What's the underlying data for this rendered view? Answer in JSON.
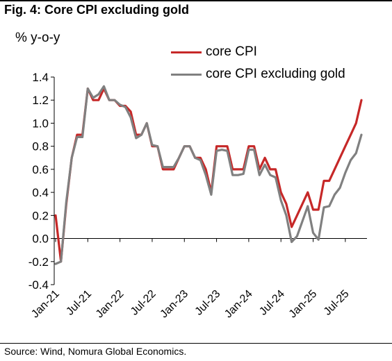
{
  "header": {
    "title": "Fig. 4: Core CPI excluding gold"
  },
  "footer": {
    "source": "Source: Wind, Nomura Global Economics."
  },
  "colors": {
    "core_cpi": "#c62828",
    "core_cpi_ex_gold": "#808080",
    "axis": "#000000"
  },
  "chart_data": {
    "type": "line",
    "title": "Fig. 4: Core CPI excluding gold",
    "ylabel": "% y-o-y",
    "xlabel": "",
    "ylim": [
      -0.4,
      1.4
    ],
    "yticks": [
      -0.4,
      -0.2,
      0.0,
      0.2,
      0.4,
      0.6,
      0.8,
      1.0,
      1.2,
      1.4
    ],
    "ytick_labels": [
      "-0.4",
      "-0.2",
      "0.0",
      "0.2",
      "0.4",
      "0.6",
      "0.8",
      "1.0",
      "1.2",
      "1.4"
    ],
    "x_start": "2021-01",
    "xtick_labels": [
      "Jan-21",
      "Jul-21",
      "Jan-22",
      "Jul-22",
      "Jan-23",
      "Jul-23",
      "Jan-24",
      "Jul-24",
      "Jan-25",
      "Jul-25"
    ],
    "xtick_positions": [
      "2021-01",
      "2021-07",
      "2022-01",
      "2022-07",
      "2023-01",
      "2023-07",
      "2024-01",
      "2024-07",
      "2025-01",
      "2025-07"
    ],
    "x": [
      "2021-01",
      "2021-02",
      "2021-03",
      "2021-04",
      "2021-05",
      "2021-06",
      "2021-07",
      "2021-08",
      "2021-09",
      "2021-10",
      "2021-11",
      "2021-12",
      "2022-01",
      "2022-02",
      "2022-03",
      "2022-04",
      "2022-05",
      "2022-06",
      "2022-07",
      "2022-08",
      "2022-09",
      "2022-10",
      "2022-11",
      "2022-12",
      "2023-01",
      "2023-02",
      "2023-03",
      "2023-04",
      "2023-05",
      "2023-06",
      "2023-07",
      "2023-08",
      "2023-09",
      "2023-10",
      "2023-11",
      "2023-12",
      "2024-01",
      "2024-02",
      "2024-03",
      "2024-04",
      "2024-05",
      "2024-06",
      "2024-07",
      "2024-08",
      "2024-09",
      "2024-10",
      "2024-11",
      "2024-12",
      "2025-01",
      "2025-02",
      "2025-03",
      "2025-04",
      "2025-05",
      "2025-06",
      "2025-07",
      "2025-08",
      "2025-09",
      "2025-10"
    ],
    "grid": false,
    "legend_position": "top-right",
    "series": [
      {
        "name": "core CPI",
        "color": "#c62828",
        "values": [
          0.2,
          -0.2,
          0.3,
          0.7,
          0.9,
          0.9,
          1.3,
          1.2,
          1.2,
          1.3,
          1.2,
          1.2,
          1.15,
          1.15,
          1.1,
          0.9,
          0.9,
          1.0,
          0.8,
          0.8,
          0.6,
          0.6,
          0.6,
          0.7,
          0.8,
          0.8,
          0.7,
          0.7,
          0.6,
          0.4,
          0.8,
          0.8,
          0.8,
          0.6,
          0.6,
          0.6,
          0.8,
          0.8,
          0.6,
          0.7,
          0.6,
          0.6,
          0.4,
          0.3,
          0.1,
          0.2,
          0.3,
          0.4,
          0.25,
          0.25,
          0.5,
          0.5,
          0.6,
          0.7,
          0.8,
          0.9,
          1.0,
          1.2
        ]
      },
      {
        "name": "core CPI excluding gold",
        "color": "#808080",
        "values": [
          -0.22,
          -0.2,
          0.32,
          0.7,
          0.88,
          0.88,
          1.3,
          1.22,
          1.25,
          1.32,
          1.2,
          1.2,
          1.16,
          1.14,
          1.05,
          0.87,
          0.9,
          1.0,
          0.81,
          0.8,
          0.62,
          0.62,
          0.62,
          0.7,
          0.8,
          0.8,
          0.7,
          0.68,
          0.55,
          0.38,
          0.76,
          0.77,
          0.76,
          0.55,
          0.55,
          0.56,
          0.77,
          0.77,
          0.55,
          0.64,
          0.55,
          0.53,
          0.33,
          0.2,
          -0.03,
          0.02,
          0.15,
          0.28,
          0.05,
          -0.01,
          0.27,
          0.28,
          0.38,
          0.44,
          0.57,
          0.68,
          0.74,
          0.9
        ]
      }
    ]
  }
}
